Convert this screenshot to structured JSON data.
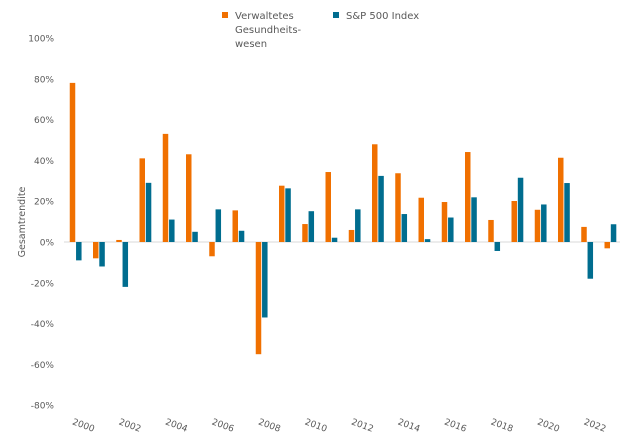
{
  "chart_data": {
    "type": "bar",
    "title": "",
    "xlabel": "",
    "ylabel": "Gesamtrendite",
    "ylim": [
      -80,
      100
    ],
    "yticks": [
      "100%",
      "80%",
      "60%",
      "40%",
      "20%",
      "0%",
      "-20%",
      "-40%",
      "-60%",
      "-80%"
    ],
    "ytick_values": [
      100,
      80,
      60,
      40,
      20,
      0,
      -20,
      -40,
      -60,
      -80
    ],
    "xtick_labels": [
      "2000",
      "2002",
      "2004",
      "2006",
      "2008",
      "2010",
      "2012",
      "2014",
      "2016",
      "2018",
      "2020",
      "2022"
    ],
    "categories": [
      "2000",
      "2001",
      "2002",
      "2003",
      "2004",
      "2005",
      "2006",
      "2007",
      "2008",
      "2009",
      "2010",
      "2011",
      "2012",
      "2013",
      "2014",
      "2015",
      "2016",
      "2017",
      "2018",
      "2019",
      "2020",
      "2021",
      "2022",
      "2023"
    ],
    "legend_position": "top",
    "grid": false,
    "series": [
      {
        "name": "Verwaltetes Gesundheits-wesen",
        "legend_lines": [
          "Verwaltetes",
          "Gesundheits-",
          "wesen"
        ],
        "color": "#F07000",
        "values": [
          78,
          -8,
          1,
          41,
          53,
          43,
          -7,
          15.5,
          -55,
          27.6,
          8.8,
          34.3,
          5.9,
          47.9,
          33.7,
          21.7,
          19.6,
          44.1,
          10.8,
          20.1,
          15.8,
          41.3,
          7.4,
          -3.1
        ]
      },
      {
        "name": "S&P 500 Index",
        "legend_lines": [
          "S&P 500 Index"
        ],
        "color": "#006D8F",
        "values": [
          -9,
          -12,
          -22,
          29,
          11,
          5,
          16,
          5.5,
          -37,
          26.3,
          15.1,
          2.1,
          16,
          32.4,
          13.7,
          1.4,
          12,
          21.9,
          -4.4,
          31.5,
          18.4,
          28.9,
          -18,
          8.7
        ]
      }
    ]
  }
}
